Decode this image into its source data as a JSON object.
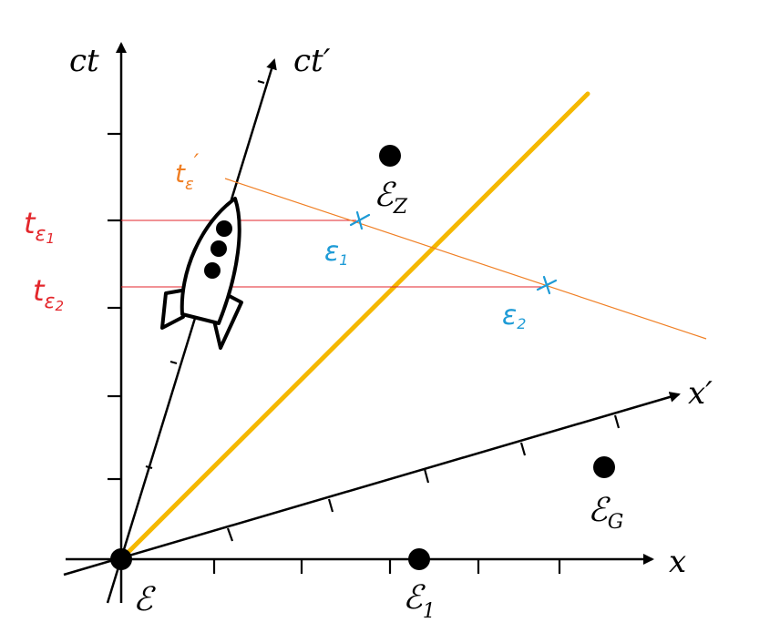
{
  "axes": {
    "ct": {
      "label": "ct"
    },
    "ct_prime": {
      "label": "ct′"
    },
    "x": {
      "label": "x"
    },
    "x_prime": {
      "label": "x′"
    }
  },
  "events": {
    "origin": {
      "label": "ℰ",
      "sub": ""
    },
    "e1": {
      "label": "ℰ",
      "sub": "1"
    },
    "ez": {
      "label": "ℰ",
      "sub": "Z"
    },
    "eg": {
      "label": "ℰ",
      "sub": "G"
    }
  },
  "annotations": {
    "t_eps_prime": {
      "main": "t",
      "sub": "ε",
      "prime": "′"
    },
    "t_eps1": {
      "main": "t",
      "sub": "ε",
      "subsub": "1"
    },
    "t_eps2": {
      "main": "t",
      "sub": "ε",
      "subsub": "2"
    },
    "eps1": {
      "main": "ε",
      "sub": "1"
    },
    "eps2": {
      "main": "ε",
      "sub": "2"
    }
  },
  "colors": {
    "axis": "#000000",
    "light_line": "#f5b800",
    "simultaneity_line": "#f07f24",
    "time_guides": "#e3262b",
    "event_markers": "#1e9bd6"
  },
  "icons": {
    "ship": "rocket-icon"
  }
}
